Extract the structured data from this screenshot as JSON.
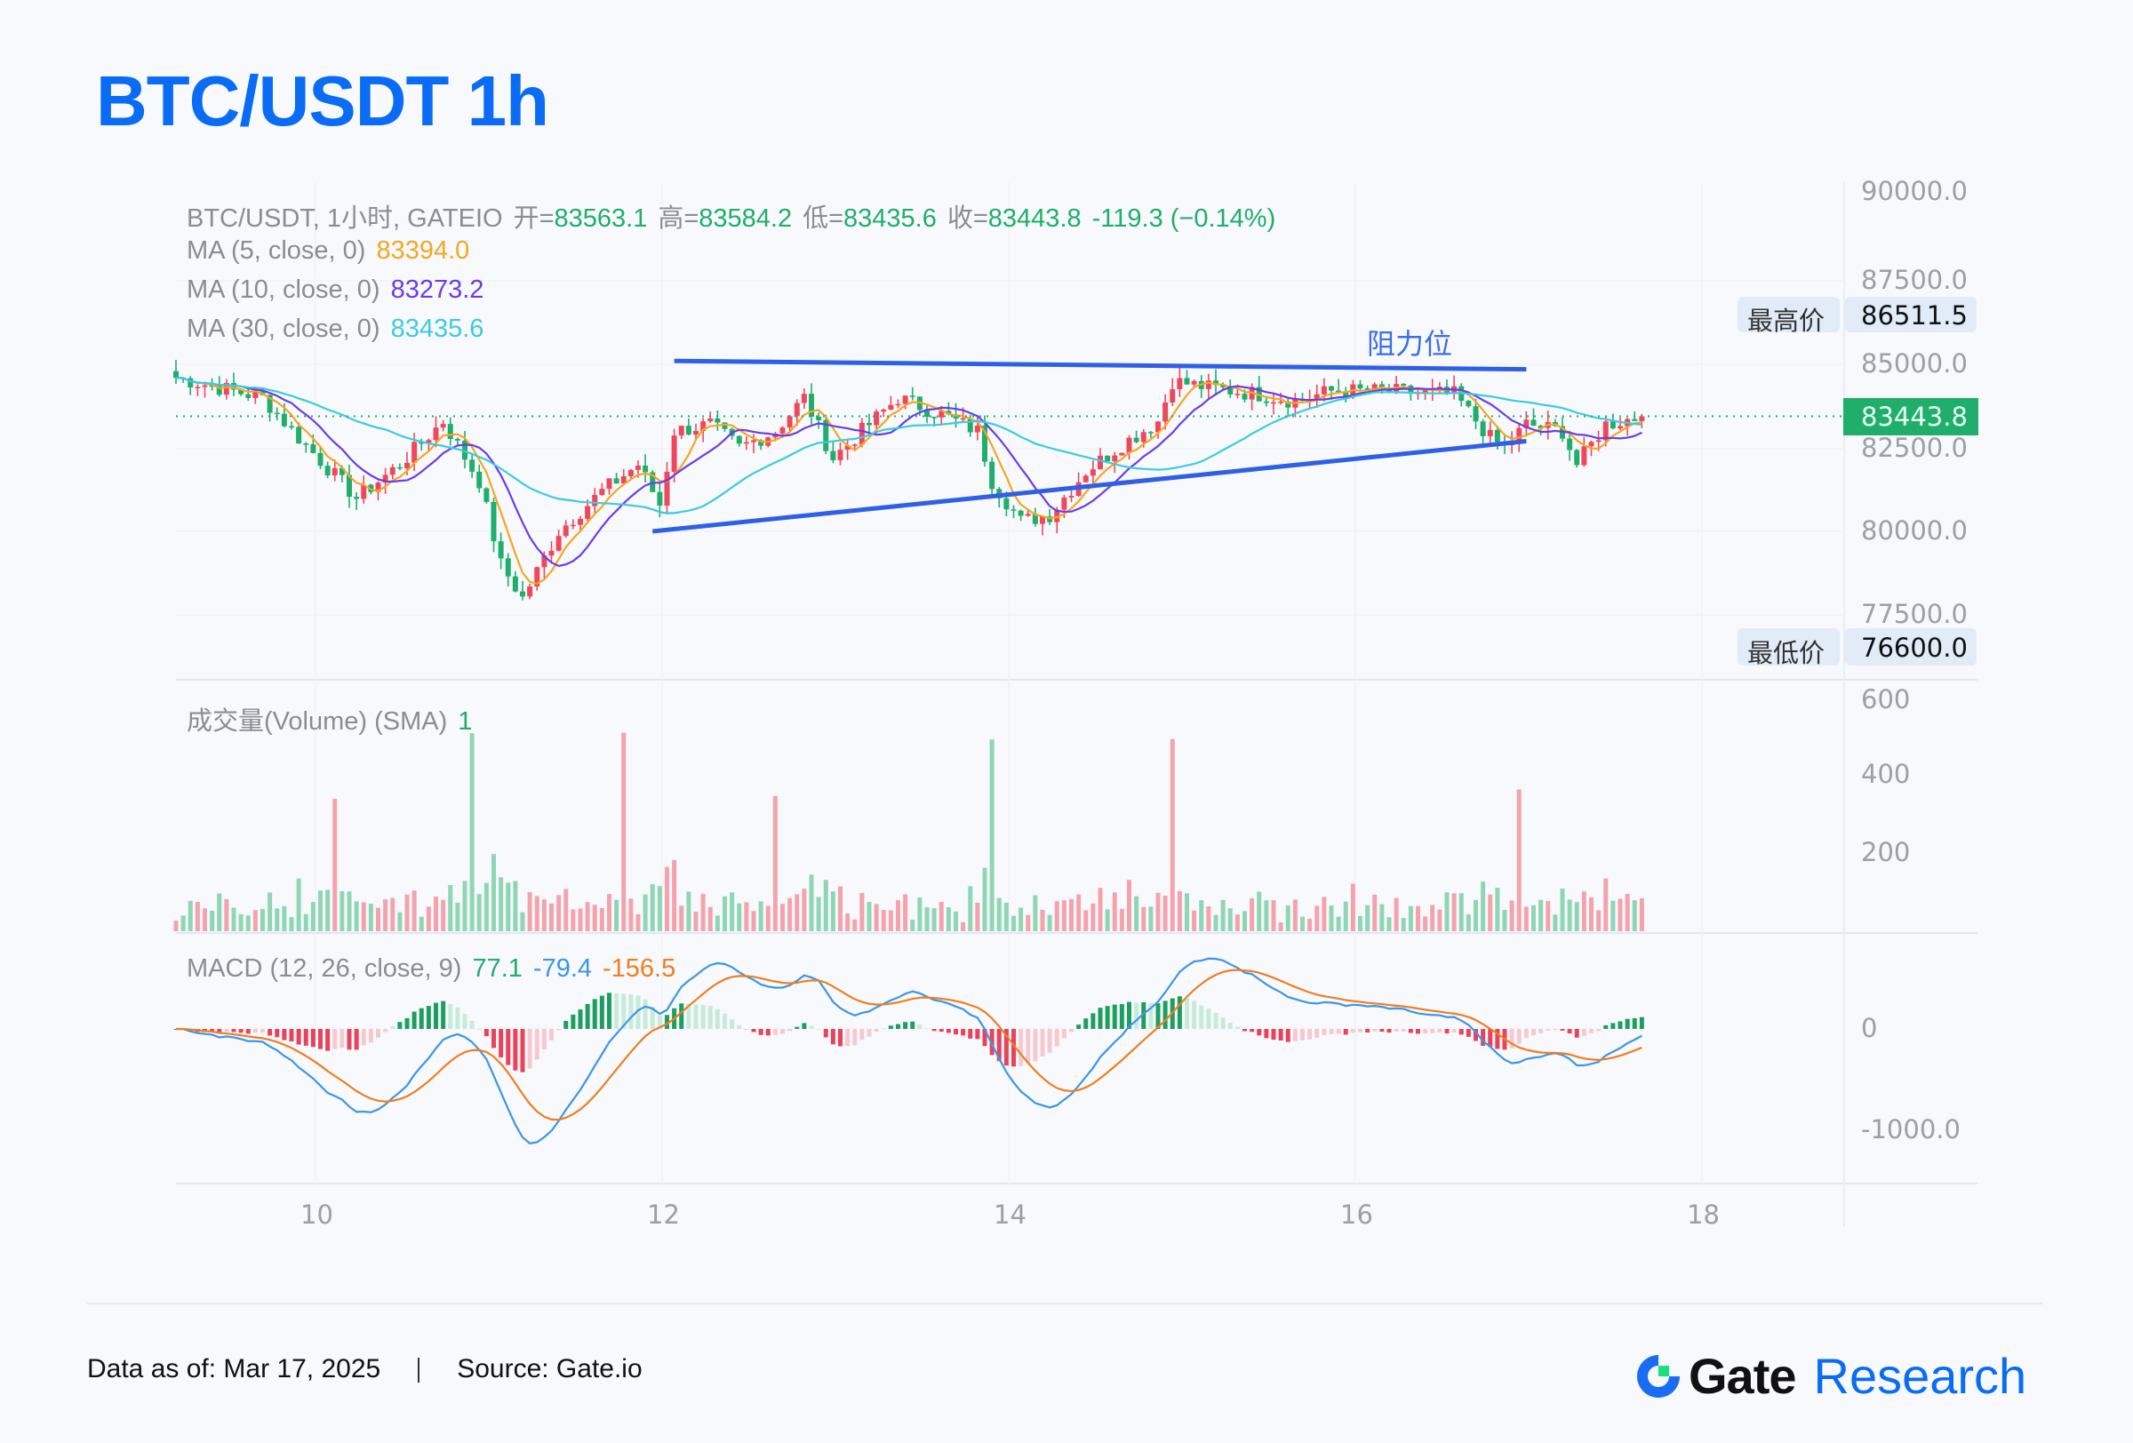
{
  "title": "BTC/USDT 1h",
  "legend": {
    "header_prefix": "BTC/USDT, 1小时, GATEIO",
    "open_label": "开=",
    "open": "83563.1",
    "high_label": "高=",
    "high": "83584.2",
    "low_label": "低=",
    "low": "83435.6",
    "close_label": "收=",
    "close": "83443.8",
    "change": "-119.3 (−0.14%)",
    "ma5_label": "MA (5, close, 0)",
    "ma5_value": "83394.0",
    "ma10_label": "MA (10, close, 0)",
    "ma10_value": "83273.2",
    "ma30_label": "MA (30, close, 0)",
    "ma30_value": "83435.6",
    "volume_label": "成交量(Volume) (SMA)",
    "volume_value": "1",
    "macd_label": "MACD (12, 26, close, 9)",
    "macd_hist": "77.1",
    "macd_line": "-79.4",
    "macd_signal": "-156.5"
  },
  "annotations": {
    "resistance_label": "阻力位",
    "highest_label": "最高价",
    "highest_value": "86511.5",
    "lowest_label": "最低价",
    "lowest_value": "76600.0",
    "last_price": "83443.8"
  },
  "colors": {
    "title": "#0a6cf5",
    "up": "#f0475c",
    "down": "#1fae6b",
    "ma5": "#f5a623",
    "ma10": "#6a3de8",
    "ma30": "#3ccbe0",
    "macd": "#3b96e8",
    "signal": "#f07d22",
    "trendline": "#2f5fe6"
  },
  "footer": {
    "data_as_of": "Data as of: Mar 17, 2025",
    "source": "Source: Gate.io",
    "logo_gate": "Gate",
    "logo_research": "Research"
  },
  "chart_data": {
    "type": "candlestick",
    "title": "BTC/USDT 1h",
    "x_ticks": [
      "10",
      "12",
      "14",
      "16",
      "18"
    ],
    "price_axis": {
      "ticks": [
        "90000.0",
        "87500.0",
        "85000.0",
        "82500.0",
        "80000.0",
        "77500.0"
      ],
      "ylim": [
        76000,
        90000
      ]
    },
    "volume_axis": {
      "ticks": [
        "600",
        "400",
        "200"
      ]
    },
    "macd_axis": {
      "ticks": [
        "0",
        "-1000.0"
      ]
    },
    "price_waypoints": [
      [
        0,
        84600
      ],
      [
        12,
        84000
      ],
      [
        17,
        82800
      ],
      [
        25,
        81000
      ],
      [
        31,
        82000
      ],
      [
        37,
        83300
      ],
      [
        42,
        81500
      ],
      [
        45,
        79000
      ],
      [
        48,
        78000
      ],
      [
        53,
        80000
      ],
      [
        59,
        81200
      ],
      [
        64,
        82000
      ],
      [
        67,
        80800
      ],
      [
        69,
        83000
      ],
      [
        74,
        83200
      ],
      [
        78,
        82500
      ],
      [
        83,
        83000
      ],
      [
        87,
        84000
      ],
      [
        91,
        82200
      ],
      [
        96,
        83200
      ],
      [
        100,
        84000
      ],
      [
        106,
        83500
      ],
      [
        111,
        83000
      ],
      [
        113,
        81500
      ],
      [
        117,
        80300
      ],
      [
        121,
        80500
      ],
      [
        126,
        81800
      ],
      [
        131,
        82600
      ],
      [
        136,
        83300
      ],
      [
        138,
        84500
      ],
      [
        143,
        84300
      ],
      [
        150,
        84100
      ],
      [
        155,
        83900
      ],
      [
        160,
        84200
      ],
      [
        167,
        84200
      ],
      [
        177,
        84100
      ],
      [
        182,
        82800
      ],
      [
        184,
        82500
      ],
      [
        187,
        83200
      ],
      [
        192,
        83000
      ],
      [
        194,
        82000
      ],
      [
        198,
        83200
      ],
      [
        203,
        83443.8
      ]
    ],
    "resistance_line": {
      "start": [
        69,
        85100
      ],
      "end": [
        187,
        84850
      ]
    },
    "support_line": {
      "start": [
        66,
        80000
      ],
      "end": [
        187,
        82700
      ]
    },
    "last_price": 83443.8,
    "highest": 86511.5,
    "lowest": 76600.0
  }
}
